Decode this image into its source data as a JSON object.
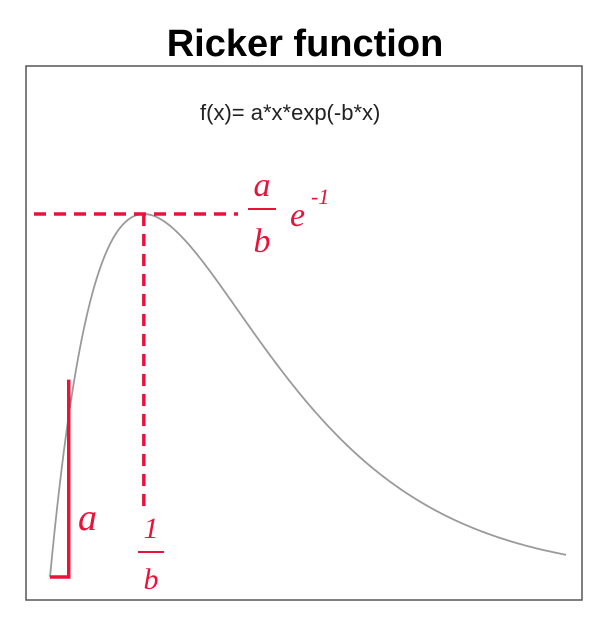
{
  "chart_data": {
    "type": "line",
    "title": "Ricker function",
    "formula": "f(x)= a*x*exp(-b*x)",
    "function": {
      "expression": "a*x*exp(-b*x)",
      "a": 1,
      "b": 1
    },
    "xlim": [
      0,
      5.5
    ],
    "grid": false,
    "legend": "none",
    "annotations": {
      "peak_y": {
        "numerator": "a",
        "denominator": "b",
        "factor_base": "e",
        "factor_exp": "-1"
      },
      "peak_x": {
        "numerator": "1",
        "denominator": "b"
      },
      "slope": {
        "label": "a"
      }
    },
    "colors": {
      "curve": "#9a9a9a",
      "annotation": "#e8123a",
      "frame": "#555555"
    }
  }
}
